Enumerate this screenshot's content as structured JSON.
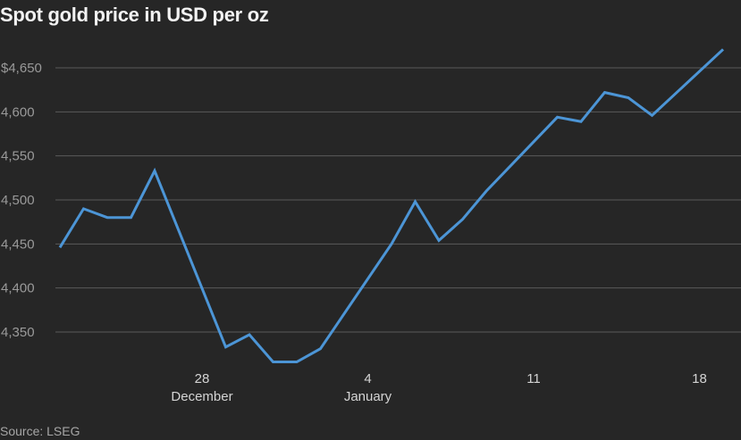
{
  "title": "Spot gold price in USD per oz",
  "source": "Source: LSEG",
  "colors": {
    "background": "#262626",
    "line": "#4c95d6",
    "grid": "#5a5a5a",
    "axis_text": "#9a9a9a"
  },
  "chart_data": {
    "type": "line",
    "title": "Spot gold price in USD per oz",
    "xlabel": "",
    "ylabel": "",
    "ylim": [
      4300,
      4675
    ],
    "grid": true,
    "y_ticks": [
      {
        "value": 4350,
        "label": "4,350"
      },
      {
        "value": 4400,
        "label": "4,400"
      },
      {
        "value": 4450,
        "label": "4,450"
      },
      {
        "value": 4500,
        "label": "4,500"
      },
      {
        "value": 4550,
        "label": "4,550"
      },
      {
        "value": 4600,
        "label": "4,600"
      },
      {
        "value": 4650,
        "label": "$4,650"
      }
    ],
    "x_ticks": [
      {
        "date": "Dec 28",
        "day_label": "28",
        "month_label": "December"
      },
      {
        "date": "Jan 4",
        "day_label": "4",
        "month_label": "January"
      },
      {
        "date": "Jan 11",
        "day_label": "11",
        "month_label": ""
      },
      {
        "date": "Jan 18",
        "day_label": "18",
        "month_label": ""
      }
    ],
    "series": [
      {
        "values": [
          {
            "x": "Dec 22",
            "y": 4446
          },
          {
            "x": "Dec 23",
            "y": 4490
          },
          {
            "x": "Dec 24",
            "y": 4480
          },
          {
            "x": "Dec 25",
            "y": 4480
          },
          {
            "x": "Dec 26",
            "y": 4533
          },
          {
            "x": "Dec 29",
            "y": 4333
          },
          {
            "x": "Dec 30",
            "y": 4347
          },
          {
            "x": "Dec 31",
            "y": 4316
          },
          {
            "x": "Jan 1",
            "y": 4316
          },
          {
            "x": "Jan 2",
            "y": 4331
          },
          {
            "x": "Jan 5",
            "y": 4450
          },
          {
            "x": "Jan 6",
            "y": 4498
          },
          {
            "x": "Jan 7",
            "y": 4454
          },
          {
            "x": "Jan 8",
            "y": 4478
          },
          {
            "x": "Jan 9",
            "y": 4510
          },
          {
            "x": "Jan 12",
            "y": 4594
          },
          {
            "x": "Jan 13",
            "y": 4589
          },
          {
            "x": "Jan 14",
            "y": 4622
          },
          {
            "x": "Jan 15",
            "y": 4616
          },
          {
            "x": "Jan 16",
            "y": 4596
          },
          {
            "x": "Jan 19",
            "y": 4671
          }
        ]
      }
    ]
  }
}
